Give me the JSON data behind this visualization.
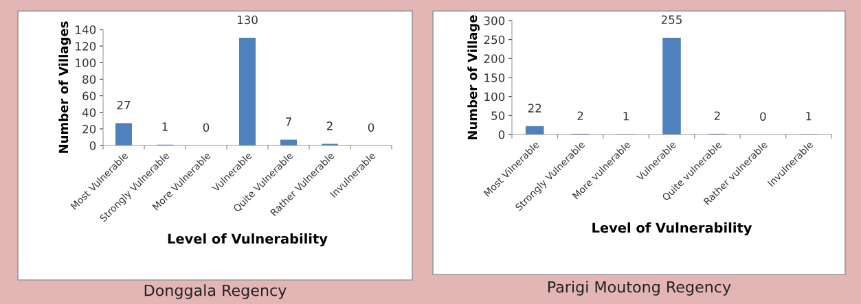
{
  "chart_data": [
    {
      "type": "bar",
      "xlabel": "Level of Vulnerability",
      "ylabel": "Number of Villages",
      "annotations": [
        "Donggala Regency"
      ],
      "categories": [
        "Most Vulnerable",
        "Strongly Vulnerable",
        "More Vulnerable",
        "Vulnerable",
        "Quite Vulnerable",
        "Rather Vulnerable",
        "Invulnerable"
      ],
      "values": [
        27,
        1,
        0,
        130,
        7,
        2,
        0
      ],
      "color": "#4f81bd",
      "ylim": [
        0,
        140
      ],
      "yticks": [
        0,
        20,
        40,
        60,
        80,
        100,
        120,
        140
      ],
      "data_labels": true,
      "grid": false,
      "legend": false
    },
    {
      "type": "bar",
      "xlabel": "Level of Vulnerability",
      "ylabel": "Number of Village",
      "annotations": [
        "Parigi Moutong Regency"
      ],
      "categories": [
        "Most Vilnerable",
        "Strongly Vulnerable",
        "More vulnerable",
        "Vulnerable",
        "Quite vulnerable",
        "Rather vulnerable",
        "Invulnerable"
      ],
      "values": [
        22,
        2,
        1,
        255,
        2,
        0,
        1
      ],
      "color": "#4f81bd",
      "ylim": [
        0,
        300
      ],
      "yticks": [
        0,
        50,
        100,
        150,
        200,
        250,
        300
      ],
      "data_labels": true,
      "grid": false,
      "legend": false
    }
  ]
}
